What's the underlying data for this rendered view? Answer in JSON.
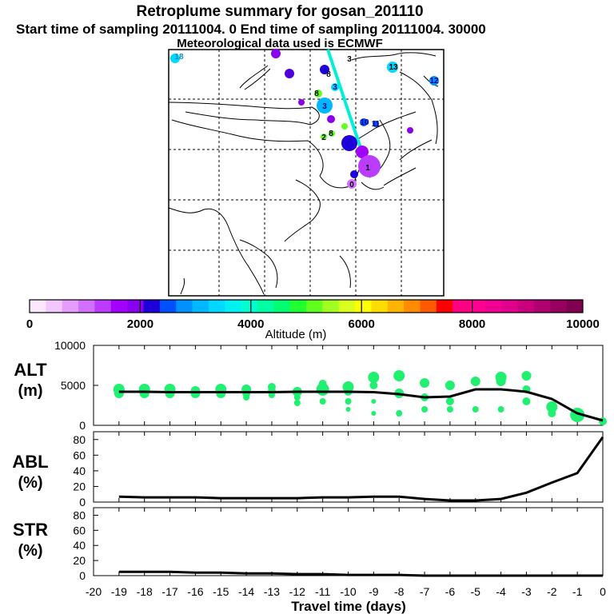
{
  "header": {
    "title": "Retroplume summary for gosan_201110",
    "sampling": "Start time of sampling 20111004.    0     End time of sampling 20111004. 30000",
    "met": "Meteorological data used is ECMWF"
  },
  "colorbar": {
    "colors": [
      "#fbe8ff",
      "#f2c6ff",
      "#e49cff",
      "#d270ff",
      "#bb3cff",
      "#a200ff",
      "#8a00ee",
      "#1e00d8",
      "#0050ff",
      "#0090ff",
      "#00b8ff",
      "#00d8ff",
      "#00f0f0",
      "#00ffd0",
      "#00ffa0",
      "#00ff70",
      "#20ff30",
      "#60ff20",
      "#a0ff20",
      "#d8ff20",
      "#ffff00",
      "#ffdc00",
      "#ffb400",
      "#ff8c00",
      "#ff5a00",
      "#ff0000",
      "#ff0080",
      "#ff0090",
      "#f00090",
      "#e0008c",
      "#c8007e",
      "#b00070",
      "#980060",
      "#800050"
    ],
    "ticks": [
      "0",
      "2000",
      "4000",
      "6000",
      "8000",
      "10000"
    ],
    "label": "Altitude (m)"
  },
  "map": {
    "numbers": [
      {
        "text": "18",
        "color": "#1090c0"
      },
      {
        "text": "3",
        "color": "#000000"
      },
      {
        "text": "13",
        "color": "#000000"
      },
      {
        "text": "12",
        "color": "#000080"
      },
      {
        "text": "8",
        "color": "#000000"
      },
      {
        "text": "3",
        "color": "#000080"
      },
      {
        "text": "8",
        "color": "#000000"
      },
      {
        "text": "3",
        "color": "#000080"
      },
      {
        "text": "10",
        "color": "#000080"
      },
      {
        "text": "11",
        "color": "#000080"
      },
      {
        "text": "2",
        "color": "#000000"
      },
      {
        "text": "8",
        "color": "#000000"
      },
      {
        "text": "1",
        "color": "#000000"
      },
      {
        "text": "0",
        "color": "#000000"
      }
    ]
  },
  "chart_data": [
    {
      "type": "line",
      "title": "ALT",
      "ylabel": "(m)",
      "xlabel": "Travel time (days)",
      "x": [
        -19,
        -18,
        -17,
        -16,
        -15,
        -14,
        -13,
        -12,
        -11,
        -10,
        -9,
        -8,
        -7,
        -6,
        -5,
        -4,
        -3,
        -2,
        -1,
        0
      ],
      "series": [
        {
          "name": "Mean plume altitude",
          "values": [
            4200,
            4200,
            4150,
            4150,
            4150,
            4150,
            4150,
            4200,
            4200,
            4200,
            4150,
            3900,
            3500,
            3600,
            4500,
            4500,
            4200,
            3300,
            1500,
            600
          ]
        }
      ],
      "ylim": [
        0,
        10000
      ],
      "yticks": [
        "0",
        "5000",
        "10000"
      ],
      "clusters": {
        "x": [
          -19,
          -19,
          -18,
          -18,
          -17,
          -17,
          -16,
          -16,
          -15,
          -15,
          -14,
          -14,
          -14,
          -13,
          -13,
          -13,
          -12,
          -12,
          -12,
          -11,
          -11,
          -11,
          -10,
          -10,
          -10,
          -10,
          -9,
          -9,
          -9,
          -9,
          -8,
          -8,
          -8,
          -7,
          -7,
          -7,
          -6,
          -6,
          -6,
          -5,
          -5,
          -4,
          -4,
          -4,
          -3,
          -3,
          -3,
          -2,
          -2,
          -1,
          -1,
          0
        ],
        "y": [
          4500,
          4000,
          4500,
          4000,
          4500,
          4000,
          4300,
          4000,
          4500,
          4000,
          4500,
          4000,
          3500,
          4800,
          4300,
          3800,
          4200,
          3500,
          2800,
          5200,
          4500,
          3000,
          4800,
          4200,
          3000,
          2000,
          6000,
          5000,
          3000,
          1500,
          6200,
          4000,
          1500,
          5300,
          3500,
          2000,
          5000,
          3000,
          2000,
          5500,
          2000,
          6000,
          5500,
          2000,
          6200,
          4500,
          3000,
          2300,
          1500,
          1300,
          1500,
          500
        ],
        "size": [
          7,
          6,
          7,
          6,
          7,
          6,
          6,
          6,
          7,
          6,
          6,
          5,
          4,
          5,
          5,
          4,
          6,
          4,
          4,
          5,
          8,
          4,
          7,
          5,
          4,
          3,
          7,
          5,
          3,
          3,
          7,
          6,
          4,
          6,
          5,
          4,
          6,
          5,
          4,
          6,
          4,
          7,
          6,
          4,
          6,
          5,
          5,
          7,
          5,
          9,
          6,
          5
        ]
      }
    },
    {
      "type": "line",
      "title": "ABL",
      "ylabel": "(%)",
      "x": [
        -19,
        -18,
        -17,
        -16,
        -15,
        -14,
        -13,
        -12,
        -11,
        -10,
        -9,
        -8,
        -7,
        -6,
        -5,
        -4,
        -3,
        -2,
        -1,
        0
      ],
      "series": [
        {
          "name": "ABL fraction",
          "values": [
            7,
            6,
            6,
            6,
            5,
            5,
            5,
            5,
            6,
            6,
            7,
            7,
            4,
            2,
            2,
            4,
            12,
            25,
            37,
            83
          ]
        }
      ],
      "ylim": [
        0,
        90
      ],
      "yticks": [
        "0",
        "20",
        "40",
        "60",
        "80"
      ]
    },
    {
      "type": "line",
      "title": "STR",
      "ylabel": "(%)",
      "x": [
        -19,
        -18,
        -17,
        -16,
        -15,
        -14,
        -13,
        -12,
        -11,
        -10,
        -9,
        -8,
        -7,
        -6,
        -5,
        -4,
        -3,
        -2,
        -1,
        0
      ],
      "series": [
        {
          "name": "Stratospheric fraction",
          "values": [
            5,
            5,
            5,
            4,
            4,
            3,
            3,
            2,
            2,
            1,
            1,
            1,
            0,
            0,
            0,
            0,
            0,
            0,
            0,
            0
          ]
        }
      ],
      "ylim": [
        0,
        90
      ],
      "yticks": [
        "0",
        "20",
        "40",
        "60",
        "80"
      ],
      "xticks": [
        "-20",
        "-19",
        "-18",
        "-17",
        "-16",
        "-15",
        "-14",
        "-13",
        "-12",
        "-11",
        "-10",
        "-9",
        "-8",
        "-7",
        "-6",
        "-5",
        "-4",
        "-3",
        "-2",
        "-1",
        "0"
      ]
    }
  ]
}
